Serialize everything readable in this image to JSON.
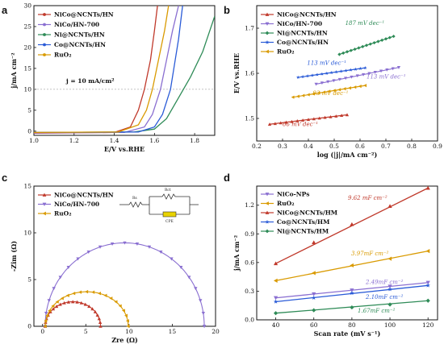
{
  "panels": {
    "a": "a",
    "b": "b",
    "c": "c",
    "d": "d"
  },
  "circuit": {
    "rs": "Rs",
    "rct": "Rct",
    "cpe": "CPE"
  },
  "chart_data": [
    {
      "id": "a",
      "type": "line",
      "xlabel": "E/V vs.RHE",
      "ylabel": "j/mA cm⁻²",
      "xlim": [
        1.0,
        1.9
      ],
      "ylim": [
        -1,
        30
      ],
      "xticks": [
        "1.0",
        "1.2",
        "1.4",
        "1.6",
        "1.8"
      ],
      "yticks": [
        "0",
        "5",
        "10",
        "15",
        "20",
        "25",
        "30"
      ],
      "legend_position": "top-left",
      "annotation": "j = 10 mA/cm²",
      "series": [
        {
          "name": "NiCo@NCNTs/HN",
          "color": "#c0392b",
          "x": [
            1.0,
            1.4,
            1.48,
            1.52,
            1.55,
            1.58,
            1.6,
            1.615
          ],
          "y": [
            -0.5,
            -0.3,
            1,
            5,
            10,
            17,
            24,
            30
          ]
        },
        {
          "name": "NiCo/HN-700",
          "color": "#8a6fd1",
          "x": [
            1.0,
            1.45,
            1.55,
            1.59,
            1.63,
            1.66,
            1.69,
            1.72
          ],
          "y": [
            -0.4,
            -0.3,
            1,
            4,
            10,
            17,
            24,
            30
          ]
        },
        {
          "name": "Ni@NCNTs/HN",
          "color": "#2e8b57",
          "x": [
            1.0,
            1.5,
            1.6,
            1.66,
            1.72,
            1.78,
            1.84,
            1.9
          ],
          "y": [
            -0.3,
            -0.2,
            0.5,
            3,
            8,
            13,
            19,
            27.5
          ]
        },
        {
          "name": "Co@NCNTs/HN",
          "color": "#2a5bd7",
          "x": [
            1.0,
            1.52,
            1.6,
            1.64,
            1.68,
            1.7,
            1.72,
            1.74
          ],
          "y": [
            -0.3,
            -0.2,
            1,
            4,
            10,
            16,
            22,
            30
          ]
        },
        {
          "name": "RuO₂",
          "color": "#d99a00",
          "x": [
            1.0,
            1.42,
            1.52,
            1.56,
            1.59,
            1.62,
            1.65,
            1.67
          ],
          "y": [
            -0.3,
            -0.2,
            1.5,
            5,
            10,
            17,
            24,
            30
          ]
        }
      ]
    },
    {
      "id": "b",
      "type": "line",
      "xlabel": "log (|j|/mA cm⁻²)",
      "ylabel": "E/V vs.RHE",
      "xlim": [
        0.2,
        0.9
      ],
      "ylim": [
        1.45,
        1.75
      ],
      "xticks": [
        "0.2",
        "0.3",
        "0.4",
        "0.5",
        "0.6",
        "0.7",
        "0.8",
        "0.9"
      ],
      "yticks": [
        "1.5",
        "1.6",
        "1.7"
      ],
      "legend_position": "top-left",
      "series": [
        {
          "name": "NiCo@NCNTs/HN",
          "color": "#c0392b",
          "x": [
            0.25,
            0.55
          ],
          "y": [
            1.487,
            1.508
          ],
          "label": "66 mV dec⁻¹"
        },
        {
          "name": "NiCo/HN-700",
          "color": "#8a6fd1",
          "x": [
            0.43,
            0.75
          ],
          "y": [
            1.576,
            1.613
          ],
          "label": "113 mV dec⁻¹"
        },
        {
          "name": "Ni@NCNTs/HN",
          "color": "#2e8b57",
          "x": [
            0.52,
            0.73
          ],
          "y": [
            1.642,
            1.682
          ],
          "label": "187 mV dec⁻¹"
        },
        {
          "name": "Co@NCNTs/HN",
          "color": "#2a5bd7",
          "x": [
            0.36,
            0.62
          ],
          "y": [
            1.591,
            1.612
          ],
          "label": "113 mV dec⁻¹"
        },
        {
          "name": "RuO₂",
          "color": "#d99a00",
          "x": [
            0.34,
            0.62
          ],
          "y": [
            1.547,
            1.573
          ],
          "label": "93 mV dec⁻¹"
        }
      ]
    },
    {
      "id": "c",
      "type": "scatter",
      "xlabel": "Zre (Ω)",
      "ylabel": "-Zim (Ω)",
      "xlim": [
        -1,
        20
      ],
      "ylim": [
        0,
        15
      ],
      "xticks": [
        "0",
        "5",
        "10",
        "15",
        "20"
      ],
      "yticks": [
        "0",
        "5",
        "10",
        "15"
      ],
      "legend_position": "top-left",
      "series": [
        {
          "name": "NiCo@NCNTs/HN",
          "color": "#c0392b",
          "rs": 0.3,
          "rct": 6.4,
          "height_ratio": 0.82
        },
        {
          "name": "NiCo/HN-700",
          "color": "#8a6fd1",
          "rs": 0.3,
          "rct": 18.4,
          "height_ratio": 0.97
        },
        {
          "name": "RuO₂",
          "color": "#d99a00",
          "rs": 0.3,
          "rct": 9.6,
          "height_ratio": 0.77
        }
      ]
    },
    {
      "id": "d",
      "type": "scatter",
      "xlabel": "Scan rate (mV s⁻¹)",
      "ylabel": "j/mA cm⁻²",
      "xlim": [
        30,
        125
      ],
      "ylim": [
        0,
        1.4
      ],
      "xticks": [
        "40",
        "60",
        "80",
        "100",
        "120"
      ],
      "yticks": [
        "0.0",
        "0.3",
        "0.6",
        "0.9",
        "1.2"
      ],
      "legend_position": "top-left",
      "series": [
        {
          "name": "NiCo-NPs",
          "color": "#8a6fd1",
          "x": [
            40,
            60,
            80,
            100,
            120
          ],
          "y": [
            0.23,
            0.27,
            0.31,
            0.35,
            0.39
          ],
          "label": "2.49mF cm⁻²"
        },
        {
          "name": "RuO₂",
          "color": "#d99a00",
          "x": [
            40,
            60,
            80,
            100,
            120
          ],
          "y": [
            0.41,
            0.49,
            0.57,
            0.64,
            0.72
          ],
          "label": "3.97mF cm⁻²"
        },
        {
          "name": "NiCo@NCNTs/HM",
          "color": "#c0392b",
          "x": [
            40,
            60,
            80,
            100,
            120
          ],
          "y": [
            0.59,
            0.81,
            1.0,
            1.19,
            1.38
          ],
          "label": "9.62 mF cm⁻²"
        },
        {
          "name": "Co@NCNTs/HM",
          "color": "#2a5bd7",
          "x": [
            40,
            60,
            80,
            100,
            120
          ],
          "y": [
            0.19,
            0.23,
            0.28,
            0.32,
            0.36
          ],
          "label": "2.10mF cm⁻²"
        },
        {
          "name": "Ni@NCNTs/HM",
          "color": "#2e8b57",
          "x": [
            40,
            60,
            80,
            100,
            120
          ],
          "y": [
            0.07,
            0.1,
            0.13,
            0.16,
            0.2
          ],
          "label": "1.67mF cm⁻²"
        }
      ]
    }
  ]
}
